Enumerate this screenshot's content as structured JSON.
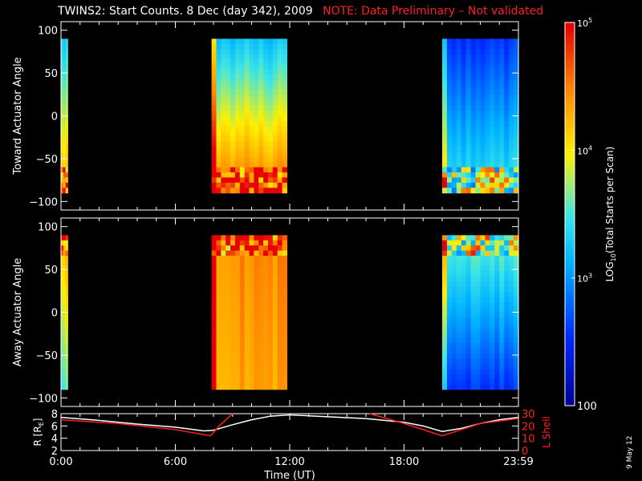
{
  "header": {
    "title_main": "TWINS2: Start Counts.  8 Dec (day 342), 2009",
    "title_note": "NOTE: Data Preliminary – Not validated"
  },
  "side_date": "9 May 12",
  "colors": {
    "background": "#000000",
    "axes": "#ffffff",
    "note_red": "#ff2020",
    "l_shell_red": "#ff2020",
    "r_line_white": "#ffffff"
  },
  "chart_data": [
    {
      "type": "heatmap",
      "name": "panel-toward",
      "ylabel": "Toward Actuator Angle",
      "ylim": [
        -110,
        110
      ],
      "yticks": [
        -100,
        -50,
        0,
        50,
        100
      ],
      "y_range": [
        -90,
        90
      ],
      "xlim": [
        0,
        24
      ],
      "xticks": [
        0,
        6,
        12,
        18,
        24
      ],
      "grid": false,
      "blocks": [
        {
          "x_start": 0.0,
          "x_end": 0.35,
          "top_level": 0.45,
          "bottom_level": 0.78,
          "noise_near": "bottom"
        },
        {
          "x_start": 7.9,
          "x_end": 11.85,
          "top_level": 0.42,
          "bottom_level": 0.86,
          "noise_near": "bottom"
        },
        {
          "x_start": 20.0,
          "x_end": 24.0,
          "top_level": 0.2,
          "bottom_level": 0.5,
          "noise_near": "bottom"
        }
      ]
    },
    {
      "type": "heatmap",
      "name": "panel-away",
      "ylabel": "Away Actuator Angle",
      "ylim": [
        -110,
        110
      ],
      "yticks": [
        -100,
        -50,
        0,
        50,
        100
      ],
      "y_range": [
        -90,
        90
      ],
      "xlim": [
        0,
        24
      ],
      "xticks": [
        0,
        6,
        12,
        18,
        24
      ],
      "grid": false,
      "blocks": [
        {
          "x_start": 0.0,
          "x_end": 0.35,
          "top_level": 0.75,
          "bottom_level": 0.52,
          "noise_near": "top"
        },
        {
          "x_start": 7.9,
          "x_end": 11.85,
          "top_level": 0.82,
          "bottom_level": 0.78,
          "noise_near": "top"
        },
        {
          "x_start": 20.0,
          "x_end": 24.0,
          "top_level": 0.55,
          "bottom_level": 0.2,
          "noise_near": "top"
        }
      ]
    },
    {
      "type": "line",
      "name": "panel-orbit",
      "ylabel": "R [R",
      "ylabel_sub": "E",
      "ylabel_close": "]",
      "y2label": "L Shell",
      "ylim": [
        2,
        8
      ],
      "yticks": [
        2,
        4,
        6,
        8
      ],
      "y2lim": [
        0,
        30
      ],
      "y2ticks": [
        0,
        10,
        20,
        30
      ],
      "xlim": [
        0,
        24
      ],
      "xticks": [
        0,
        6,
        12,
        18,
        24
      ],
      "xticklabels": [
        "0:00",
        "6:00",
        "12:00",
        "18:00",
        "23:59"
      ],
      "xlabel": "Time (UT)",
      "series": [
        {
          "axis": "left",
          "color": "#ffffff",
          "x": [
            0,
            2,
            4,
            6,
            7.5,
            8.0,
            9,
            10,
            11,
            12,
            14,
            16,
            18,
            19,
            20.0,
            21,
            22,
            23,
            24
          ],
          "y": [
            7.4,
            6.9,
            6.3,
            5.8,
            5.2,
            5.3,
            6.2,
            7.0,
            7.6,
            7.8,
            7.5,
            7.2,
            6.6,
            6.0,
            5.1,
            5.6,
            6.4,
            7.0,
            7.4
          ]
        },
        {
          "axis": "right",
          "color": "#ff2020",
          "x": [
            0,
            3,
            6,
            7.85,
            8.3,
            9.0
          ],
          "y": [
            25.0,
            22.0,
            17.0,
            12.0,
            20.0,
            30.0
          ]
        },
        {
          "axis": "right",
          "color": "#ff2020",
          "x": [
            16.2,
            18,
            20.0,
            22,
            24
          ],
          "y": [
            30.0,
            22.0,
            12.0,
            22.0,
            26.0
          ]
        }
      ]
    }
  ],
  "colorbar": {
    "scale": "log",
    "range": [
      100,
      100000
    ],
    "ticks": [
      {
        "value": 100000,
        "base": "10",
        "exp": "5"
      },
      {
        "value": 10000,
        "base": "10",
        "exp": "4"
      },
      {
        "value": 1000,
        "base": "10",
        "exp": "3"
      },
      {
        "value": 100,
        "base": "100",
        "exp": ""
      }
    ],
    "label_pre": "LOG",
    "label_sub": "10",
    "label_post": "(Total Starts per Scan)"
  }
}
